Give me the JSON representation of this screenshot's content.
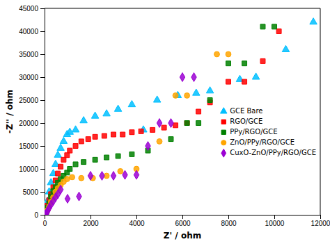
{
  "chart_data": {
    "type": "scatter",
    "xlabel": "Z' / ohm",
    "ylabel": "-Z'' / ohm",
    "xlim": [
      0,
      12000
    ],
    "ylim": [
      0,
      45000
    ],
    "xticks": [
      0,
      2000,
      4000,
      6000,
      8000,
      10000,
      12000
    ],
    "yticks": [
      0,
      5000,
      10000,
      15000,
      20000,
      25000,
      30000,
      35000,
      40000,
      45000
    ],
    "legend": "center right",
    "series": [
      {
        "name": "GCE Bare",
        "color": "#00BFFF",
        "marker": "triangle",
        "x": [
          30,
          80,
          130,
          200,
          280,
          380,
          480,
          580,
          700,
          830,
          980,
          1100,
          1350,
          1700,
          2200,
          2700,
          3200,
          3800,
          4300,
          4900,
          5800,
          6600,
          7200,
          8500,
          9200,
          10500,
          11700
        ],
        "values": [
          500,
          1500,
          3000,
          5000,
          7000,
          9000,
          11000,
          13000,
          14500,
          16000,
          17500,
          18000,
          18500,
          20500,
          21500,
          22000,
          23000,
          24000,
          18500,
          25000,
          26000,
          26500,
          27000,
          29500,
          30000,
          36000,
          42000
        ]
      },
      {
        "name": "RGO/GCE",
        "color": "#FF0000",
        "marker": "square",
        "x": [
          30,
          80,
          130,
          200,
          280,
          380,
          480,
          580,
          700,
          830,
          980,
          1100,
          1350,
          1600,
          1900,
          2200,
          2600,
          3000,
          3400,
          3800,
          4200,
          4700,
          5200,
          5700,
          6200,
          6700,
          7200,
          8000,
          8700,
          9500,
          10200
        ],
        "values": [
          300,
          1000,
          2000,
          3200,
          4500,
          6000,
          7500,
          9000,
          10500,
          12000,
          13000,
          14000,
          15000,
          16000,
          16500,
          17000,
          17200,
          17500,
          17500,
          18000,
          18200,
          18500,
          19000,
          19500,
          20000,
          22500,
          24500,
          29000,
          29000,
          33500,
          40000
        ]
      },
      {
        "name": "PPy/RGO/GCE",
        "color": "#008000",
        "marker": "square",
        "x": [
          30,
          80,
          130,
          200,
          280,
          380,
          480,
          580,
          700,
          830,
          980,
          1100,
          1350,
          1700,
          2200,
          2700,
          3200,
          3800,
          4500,
          5500,
          6200,
          6700,
          7200,
          8000,
          8700,
          9500,
          10000
        ],
        "values": [
          200,
          700,
          1500,
          2500,
          4000,
          5200,
          6000,
          7000,
          7800,
          8500,
          9200,
          10000,
          11000,
          11500,
          12000,
          12500,
          12800,
          13200,
          14000,
          16500,
          20000,
          20000,
          25000,
          33000,
          33000,
          41000,
          41000
        ]
      },
      {
        "name": "ZnO/PPy/RGO/GCE",
        "color": "#FFA500",
        "marker": "circle",
        "x": [
          30,
          80,
          130,
          200,
          280,
          380,
          480,
          580,
          700,
          830,
          980,
          1200,
          1600,
          2100,
          2700,
          3300,
          4000,
          5000,
          5700,
          6200,
          7500,
          8000
        ],
        "values": [
          100,
          400,
          1000,
          1800,
          2800,
          3800,
          5000,
          5800,
          6500,
          7200,
          7800,
          8200,
          8000,
          8000,
          8500,
          9500,
          10000,
          16000,
          26000,
          26000,
          35000,
          35000
        ]
      },
      {
        "name": "CuxO-ZnO/PPy/RGO/GCE",
        "color": "#9B00D3",
        "marker": "diamond",
        "x": [
          30,
          80,
          130,
          200,
          280,
          380,
          480,
          580,
          700,
          1000,
          1500,
          2000,
          2500,
          3000,
          3500,
          4000,
          4500,
          5000,
          5500,
          6000,
          6500
        ],
        "values": [
          100,
          300,
          800,
          1500,
          2200,
          3000,
          3800,
          4500,
          5500,
          3500,
          4000,
          8500,
          8500,
          8500,
          8700,
          8700,
          15000,
          20000,
          20000,
          30000,
          30000
        ]
      }
    ]
  }
}
